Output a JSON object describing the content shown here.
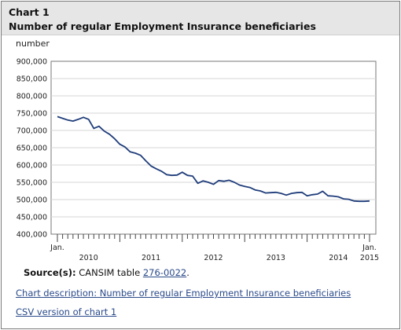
{
  "header": {
    "chart_number": "Chart 1",
    "title": "Number of regular Employment Insurance beneficiaries"
  },
  "chart_data": {
    "type": "line",
    "title": "Number of regular Employment Insurance beneficiaries",
    "ylabel": "number",
    "ylim": [
      400000,
      900000
    ],
    "yticks": [
      400000,
      450000,
      500000,
      550000,
      600000,
      650000,
      700000,
      750000,
      800000,
      850000,
      900000
    ],
    "ytick_labels": [
      "400,000",
      "450,000",
      "500,000",
      "550,000",
      "600,000",
      "650,000",
      "700,000",
      "750,000",
      "800,000",
      "850,000",
      "900,000"
    ],
    "x_start": "Jan. 2010",
    "x_end": "Jan. 2015",
    "first_label": "Jan.",
    "last_label_month": "Jan.",
    "last_label_year": "2015",
    "year_labels": [
      "2010",
      "2011",
      "2012",
      "2013",
      "2014"
    ],
    "grid": true,
    "legend": "none",
    "color": "#1f3d7a",
    "series": [
      {
        "values": [
          740000,
          735000,
          730000,
          727000,
          732000,
          738000,
          732000,
          706000,
          712000,
          698000,
          689000,
          676000,
          660000,
          652000,
          638000,
          634000,
          628000,
          612000,
          597000,
          589000,
          582000,
          572000,
          570000,
          571000,
          579000,
          570000,
          568000,
          547000,
          554000,
          550000,
          544000,
          555000,
          553000,
          556000,
          550000,
          542000,
          538000,
          535000,
          528000,
          525000,
          519000,
          520000,
          521000,
          518000,
          513000,
          518000,
          520000,
          521000,
          511000,
          514000,
          516000,
          524000,
          511000,
          510000,
          508000,
          502000,
          501000,
          496000,
          495000,
          495000,
          496000
        ]
      }
    ]
  },
  "source": {
    "label": "Source(s):",
    "text": "CANSIM table",
    "link": "276-0022",
    "end": "."
  },
  "links": {
    "description": "Chart description: Number of regular Employment Insurance beneficiaries",
    "csv": "CSV version of chart 1"
  }
}
